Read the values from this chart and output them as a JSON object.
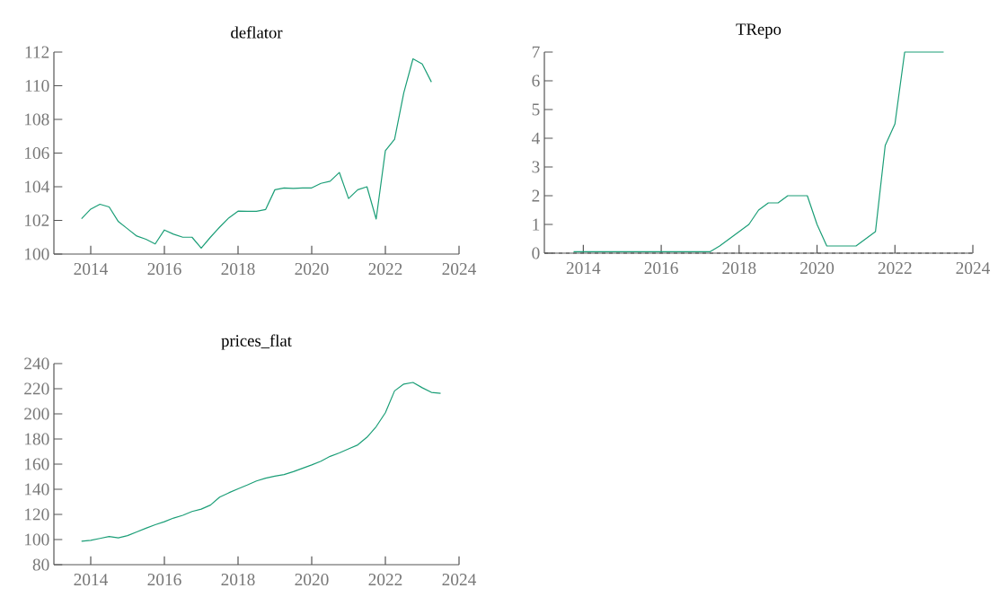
{
  "chart_data": [
    {
      "type": "line",
      "title": "deflator",
      "color": "#1b9e77",
      "line_style": "solid",
      "x": [
        2013.75,
        2014.0,
        2014.25,
        2014.5,
        2014.75,
        2015.0,
        2015.25,
        2015.5,
        2015.75,
        2016.0,
        2016.25,
        2016.5,
        2016.75,
        2017.0,
        2017.25,
        2017.5,
        2017.75,
        2018.0,
        2018.25,
        2018.5,
        2018.75,
        2019.0,
        2019.25,
        2019.5,
        2019.75,
        2020.0,
        2020.25,
        2020.5,
        2020.75,
        2021.0,
        2021.25,
        2021.5,
        2021.75,
        2022.0,
        2022.25,
        2022.5,
        2022.75,
        2023.0,
        2023.25
      ],
      "values": [
        102.1,
        102.67,
        102.96,
        102.8,
        101.93,
        101.5,
        101.07,
        100.88,
        100.6,
        101.43,
        101.18,
        101.0,
        101.0,
        100.35,
        101.0,
        101.6,
        102.15,
        102.55,
        102.54,
        102.54,
        102.65,
        103.82,
        103.93,
        103.9,
        103.93,
        103.93,
        104.2,
        104.33,
        104.85,
        103.3,
        103.82,
        104.0,
        102.08,
        106.14,
        106.82,
        109.58,
        111.6,
        111.29,
        110.22
      ],
      "xlim": [
        2013,
        2024
      ],
      "ylim": [
        100,
        112
      ],
      "xticks": [
        2014,
        2016,
        2018,
        2020,
        2022,
        2024
      ],
      "yticks": [
        100,
        102,
        104,
        106,
        108,
        110,
        112
      ]
    },
    {
      "type": "line",
      "title": "TRepo",
      "color": "#1b9e77",
      "line_style": "solid",
      "x": [
        2013.75,
        2014.0,
        2014.25,
        2014.5,
        2014.75,
        2015.0,
        2015.25,
        2015.5,
        2015.75,
        2016.0,
        2016.25,
        2016.5,
        2016.75,
        2017.0,
        2017.25,
        2017.5,
        2017.75,
        2018.0,
        2018.25,
        2018.5,
        2018.75,
        2019.0,
        2019.25,
        2019.5,
        2019.75,
        2020.0,
        2020.25,
        2020.5,
        2020.75,
        2021.0,
        2021.25,
        2021.5,
        2021.75,
        2022.0,
        2022.25,
        2022.5,
        2022.75,
        2023.0,
        2023.25
      ],
      "values": [
        0.05,
        0.05,
        0.05,
        0.05,
        0.05,
        0.05,
        0.05,
        0.05,
        0.05,
        0.05,
        0.05,
        0.05,
        0.05,
        0.05,
        0.05,
        0.25,
        0.5,
        0.75,
        1.0,
        1.5,
        1.75,
        1.75,
        2.0,
        2.0,
        2.0,
        1.0,
        0.25,
        0.25,
        0.25,
        0.25,
        0.5,
        0.75,
        3.75,
        4.5,
        7.0,
        7.0,
        7.0,
        7.0,
        7.0
      ],
      "xlim": [
        2013,
        2024
      ],
      "ylim": [
        0,
        7
      ],
      "xticks": [
        2014,
        2016,
        2018,
        2020,
        2022,
        2024
      ],
      "yticks": [
        0,
        1,
        2,
        3,
        4,
        5,
        6,
        7
      ],
      "ref_lines": [
        {
          "axis": "y",
          "value": 0,
          "color": "#555555",
          "line_style": "dashed"
        }
      ]
    },
    {
      "type": "line",
      "title": "prices_flat",
      "color": "#1b9e77",
      "line_style": "solid",
      "x": [
        2013.75,
        2014.0,
        2014.25,
        2014.5,
        2014.75,
        2015.0,
        2015.25,
        2015.5,
        2015.75,
        2016.0,
        2016.25,
        2016.5,
        2016.75,
        2017.0,
        2017.25,
        2017.5,
        2017.75,
        2018.0,
        2018.25,
        2018.5,
        2018.75,
        2019.0,
        2019.25,
        2019.5,
        2019.75,
        2020.0,
        2020.25,
        2020.5,
        2020.75,
        2021.0,
        2021.25,
        2021.5,
        2021.75,
        2022.0,
        2022.25,
        2022.5,
        2022.75,
        2023.0,
        2023.25,
        2023.5
      ],
      "values": [
        98.7,
        99.4,
        100.9,
        102.4,
        101.4,
        103.1,
        106.1,
        109.0,
        111.8,
        114.2,
        117.1,
        119.3,
        122.3,
        124.2,
        127.4,
        133.8,
        137.2,
        140.4,
        143.4,
        146.6,
        148.8,
        150.5,
        151.7,
        154.0,
        156.7,
        159.4,
        162.3,
        166.2,
        168.9,
        172.1,
        175.3,
        181.4,
        189.8,
        200.9,
        218.3,
        223.7,
        225.0,
        220.8,
        217.1,
        216.4
      ],
      "xlim": [
        2013,
        2024
      ],
      "ylim": [
        80,
        240
      ],
      "xticks": [
        2014,
        2016,
        2018,
        2020,
        2022,
        2024
      ],
      "yticks": [
        80,
        100,
        120,
        140,
        160,
        180,
        200,
        220,
        240
      ]
    }
  ]
}
